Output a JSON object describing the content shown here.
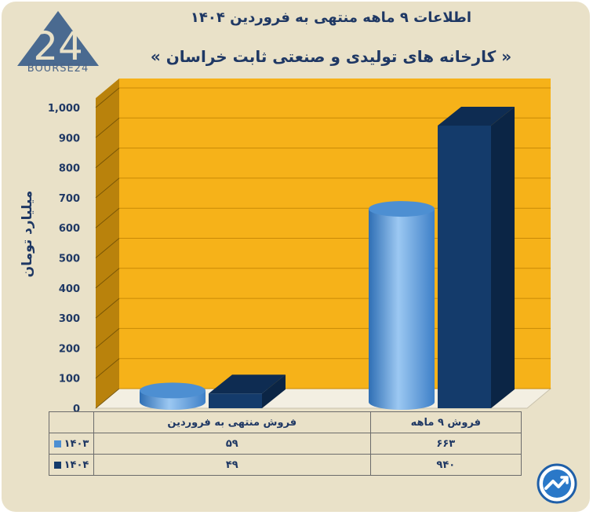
{
  "brand": {
    "logo_digits": "24",
    "logo_text": "BOURSE24"
  },
  "header": {
    "title": "اطلاعات ۹ ماهه منتهی به فروردین ۱۴۰۴",
    "subtitle": "« کارخانه های تولیدی و صنعتی ثابت خراسان »"
  },
  "colors": {
    "background": "#e9e1c8",
    "plot_back": "#f6b219",
    "plot_side": "#b9820c",
    "series_1403": "#4d8fd2",
    "series_1404": "#143b6b"
  },
  "chart_data": {
    "type": "bar",
    "ylabel": "میلیارد تومان",
    "ylim": [
      0,
      1000
    ],
    "yticks": [
      "1,000",
      "900",
      "800",
      "700",
      "600",
      "500",
      "400",
      "300",
      "200",
      "100",
      "0"
    ],
    "categories": [
      "فروش منتهی به  فروردین",
      "فروش ۹  ماهه"
    ],
    "series": [
      {
        "name": "۱۴۰۳",
        "values": [
          59,
          663
        ],
        "labels": [
          "۵۹",
          "۶۶۳"
        ],
        "shape": "cylinder"
      },
      {
        "name": "۱۴۰۴",
        "values": [
          49,
          940
        ],
        "labels": [
          "۴۹",
          "۹۴۰"
        ],
        "shape": "box"
      }
    ],
    "grid": true,
    "legend": "data-table"
  }
}
